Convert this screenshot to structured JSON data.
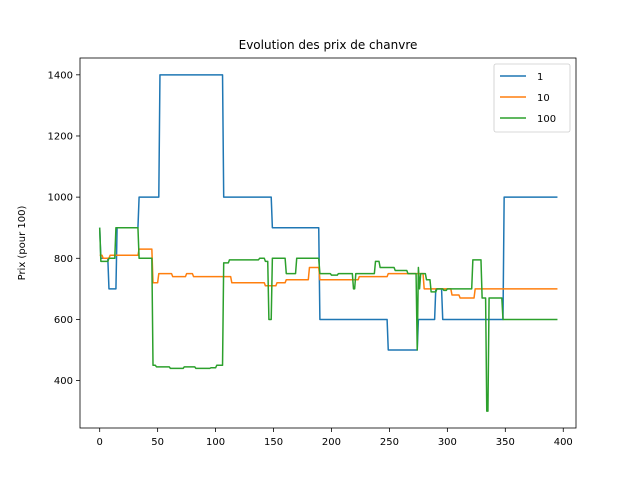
{
  "chart_data": {
    "type": "line",
    "title": "Evolution des prix de chanvre",
    "xlabel": "",
    "ylabel": "Prix (pour 100)",
    "xlim": [
      -17,
      411
    ],
    "ylim": [
      245,
      1455
    ],
    "xticks": [
      0,
      50,
      100,
      150,
      200,
      250,
      300,
      350,
      400
    ],
    "yticks": [
      400,
      600,
      800,
      1000,
      1200,
      1400
    ],
    "legend_position": "top-right",
    "grid": false,
    "series": [
      {
        "name": "1",
        "color": "#1f77b4",
        "points": [
          [
            0,
            900
          ],
          [
            1,
            800
          ],
          [
            7,
            800
          ],
          [
            8,
            700
          ],
          [
            14,
            700
          ],
          [
            15,
            900
          ],
          [
            33,
            900
          ],
          [
            34,
            1000
          ],
          [
            51,
            1000
          ],
          [
            52,
            1400
          ],
          [
            106,
            1400
          ],
          [
            107,
            1000
          ],
          [
            148,
            1000
          ],
          [
            149,
            900
          ],
          [
            189,
            900
          ],
          [
            190,
            600
          ],
          [
            248,
            600
          ],
          [
            249,
            500
          ],
          [
            274,
            500
          ],
          [
            275,
            600
          ],
          [
            289,
            600
          ],
          [
            290,
            700
          ],
          [
            295,
            700
          ],
          [
            296,
            600
          ],
          [
            348,
            600
          ],
          [
            349,
            1000
          ],
          [
            395,
            1000
          ]
        ]
      },
      {
        "name": "10",
        "color": "#ff7f0e",
        "points": [
          [
            0,
            810
          ],
          [
            2,
            810
          ],
          [
            3,
            800
          ],
          [
            8,
            800
          ],
          [
            9,
            810
          ],
          [
            33,
            810
          ],
          [
            34,
            830
          ],
          [
            45,
            830
          ],
          [
            46,
            720
          ],
          [
            50,
            720
          ],
          [
            51,
            750
          ],
          [
            62,
            750
          ],
          [
            63,
            740
          ],
          [
            74,
            740
          ],
          [
            75,
            750
          ],
          [
            80,
            750
          ],
          [
            81,
            740
          ],
          [
            113,
            740
          ],
          [
            114,
            720
          ],
          [
            142,
            720
          ],
          [
            143,
            710
          ],
          [
            152,
            710
          ],
          [
            153,
            720
          ],
          [
            160,
            720
          ],
          [
            161,
            730
          ],
          [
            180,
            730
          ],
          [
            181,
            770
          ],
          [
            189,
            770
          ],
          [
            190,
            730
          ],
          [
            223,
            730
          ],
          [
            224,
            740
          ],
          [
            248,
            740
          ],
          [
            249,
            750
          ],
          [
            279,
            750
          ],
          [
            280,
            700
          ],
          [
            303,
            700
          ],
          [
            304,
            680
          ],
          [
            310,
            680
          ],
          [
            311,
            670
          ],
          [
            323,
            670
          ],
          [
            324,
            700
          ],
          [
            395,
            700
          ]
        ]
      },
      {
        "name": "100",
        "color": "#2ca02c",
        "points": [
          [
            0,
            900
          ],
          [
            1,
            790
          ],
          [
            7,
            790
          ],
          [
            8,
            800
          ],
          [
            13,
            800
          ],
          [
            14,
            900
          ],
          [
            16,
            900
          ],
          [
            17,
            900
          ],
          [
            33,
            900
          ],
          [
            34,
            800
          ],
          [
            45,
            800
          ],
          [
            46,
            450
          ],
          [
            48,
            450
          ],
          [
            49,
            445
          ],
          [
            60,
            445
          ],
          [
            61,
            440
          ],
          [
            72,
            440
          ],
          [
            73,
            445
          ],
          [
            82,
            445
          ],
          [
            83,
            440
          ],
          [
            95,
            440
          ],
          [
            96,
            442
          ],
          [
            100,
            442
          ],
          [
            101,
            450
          ],
          [
            106,
            450
          ],
          [
            107,
            785
          ],
          [
            111,
            785
          ],
          [
            112,
            795
          ],
          [
            137,
            795
          ],
          [
            138,
            800
          ],
          [
            142,
            800
          ],
          [
            143,
            790
          ],
          [
            145,
            790
          ],
          [
            146,
            600
          ],
          [
            148,
            600
          ],
          [
            149,
            800
          ],
          [
            160,
            800
          ],
          [
            161,
            750
          ],
          [
            169,
            750
          ],
          [
            170,
            800
          ],
          [
            189,
            800
          ],
          [
            190,
            750
          ],
          [
            199,
            750
          ],
          [
            200,
            745
          ],
          [
            205,
            745
          ],
          [
            206,
            750
          ],
          [
            218,
            750
          ],
          [
            219,
            700
          ],
          [
            220,
            700
          ],
          [
            221,
            750
          ],
          [
            237,
            750
          ],
          [
            238,
            790
          ],
          [
            241,
            790
          ],
          [
            242,
            770
          ],
          [
            254,
            770
          ],
          [
            255,
            760
          ],
          [
            265,
            760
          ],
          [
            266,
            750
          ],
          [
            273,
            750
          ],
          [
            274,
            500
          ],
          [
            275,
            770
          ],
          [
            276,
            700
          ],
          [
            277,
            750
          ],
          [
            281,
            750
          ],
          [
            282,
            730
          ],
          [
            285,
            730
          ],
          [
            286,
            690
          ],
          [
            290,
            690
          ],
          [
            291,
            700
          ],
          [
            296,
            700
          ],
          [
            297,
            695
          ],
          [
            299,
            695
          ],
          [
            300,
            700
          ],
          [
            320,
            700
          ],
          [
            321,
            700
          ],
          [
            322,
            795
          ],
          [
            329,
            795
          ],
          [
            330,
            670
          ],
          [
            333,
            670
          ],
          [
            334,
            300
          ],
          [
            335,
            300
          ],
          [
            336,
            670
          ],
          [
            347,
            670
          ],
          [
            348,
            600
          ],
          [
            395,
            600
          ]
        ]
      }
    ]
  }
}
